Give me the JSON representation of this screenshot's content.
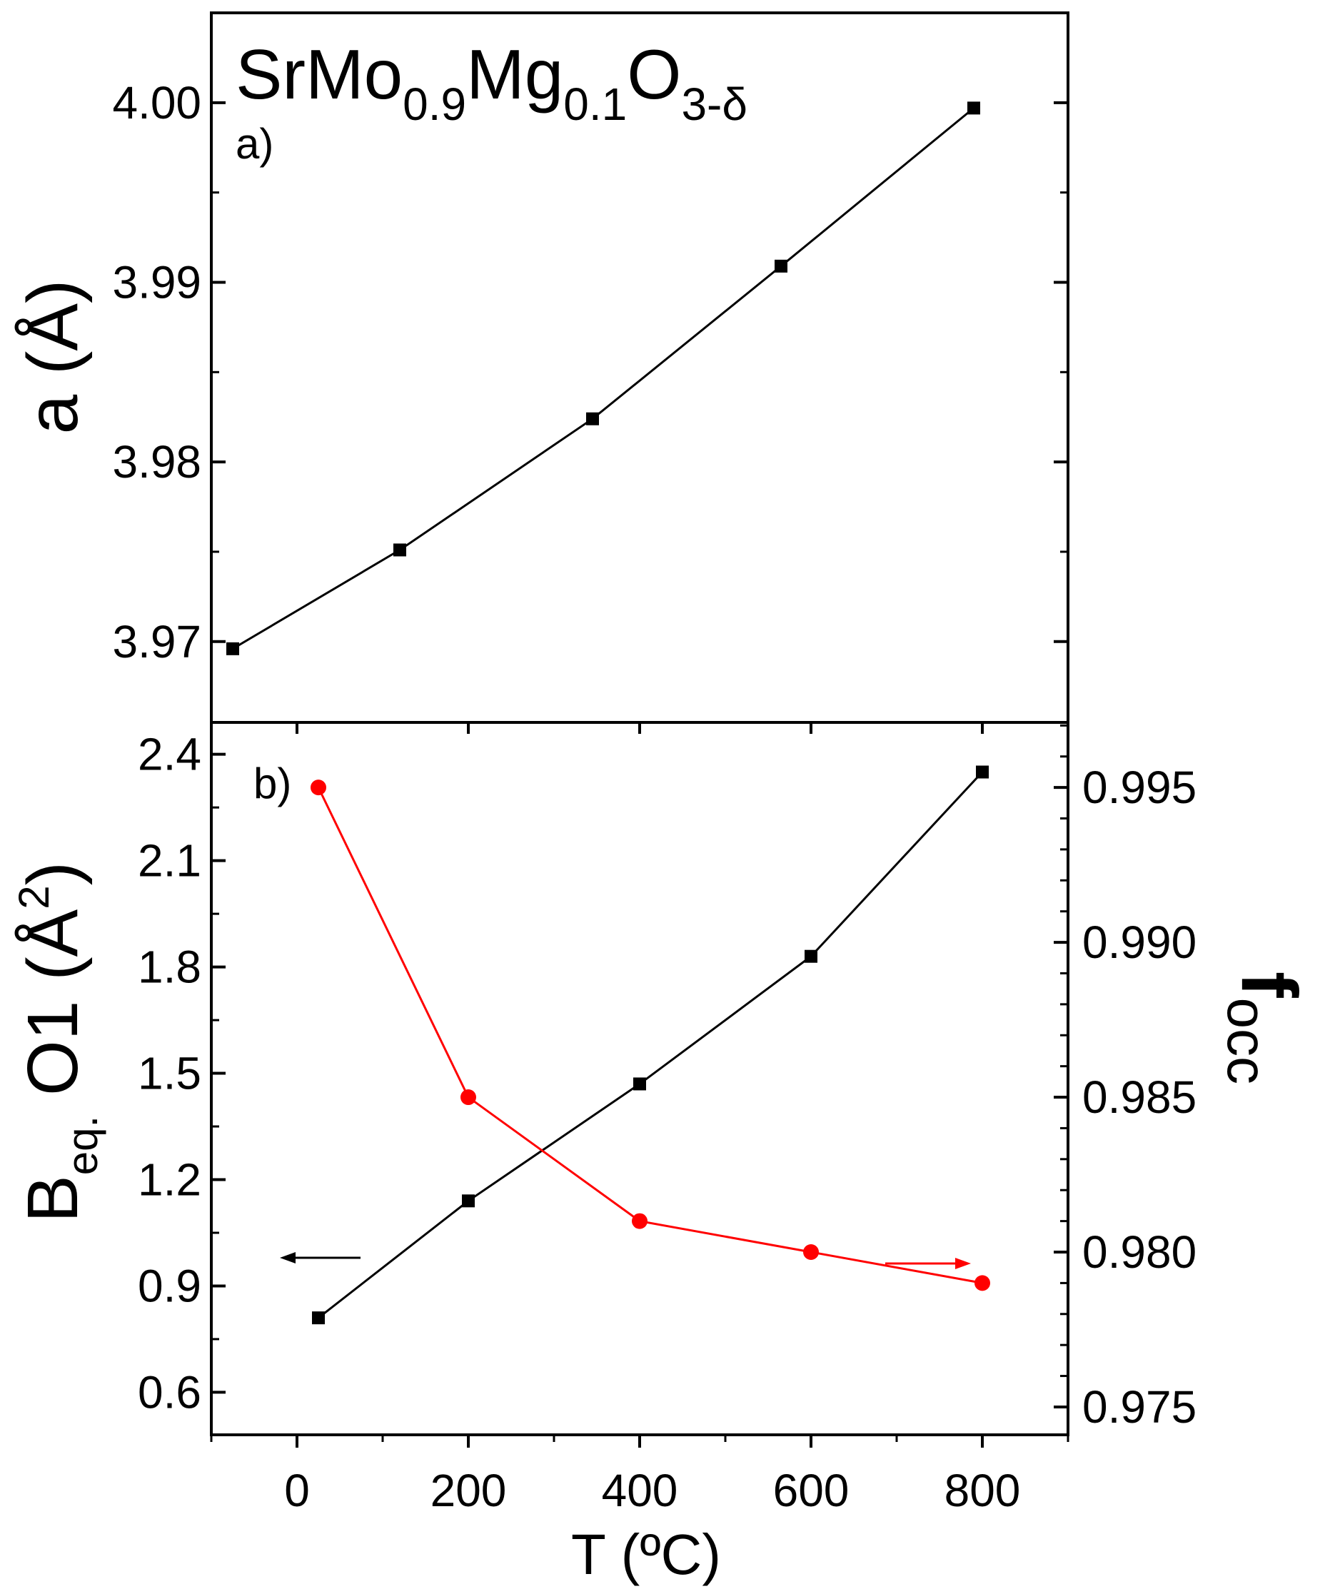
{
  "chart_data": [
    {
      "panel": "a)",
      "type": "line",
      "title": {
        "base": "SrMo",
        "sub1": "0.9",
        "mid": "Mg",
        "sub2": "0.1",
        "end": "O",
        "sub3": "3-δ"
      },
      "ylabel": {
        "main": "a (Å)"
      },
      "xlim": [
        -100,
        900
      ],
      "ylim": [
        3.9655,
        4.005
      ],
      "yticks": [
        "3.97",
        "3.98",
        "3.99",
        "4.00"
      ],
      "grid": false,
      "series": [
        {
          "marker": "square",
          "color": "#000000",
          "points": [
            [
              -75,
              3.9696
            ],
            [
              120,
              3.9751
            ],
            [
              345,
              3.9824
            ],
            [
              565,
              3.9909
            ],
            [
              790,
              3.9997
            ]
          ]
        }
      ]
    },
    {
      "panel": "b)",
      "type": "line",
      "xlabel": "T (ºC)",
      "xlim": [
        -100,
        900
      ],
      "xticks": [
        "0",
        "200",
        "400",
        "600",
        "800"
      ],
      "ylabel_left": {
        "main": "B",
        "sub": "eq.",
        "rest": " O1 (Å",
        "sup": "2",
        "close": ")"
      },
      "ylim_left": [
        0.48,
        2.49
      ],
      "yticks_left": [
        "0.6",
        "0.9",
        "1.2",
        "1.5",
        "1.8",
        "2.1",
        "2.4"
      ],
      "ylabel_right": {
        "main": "f",
        "sub": "occ"
      },
      "ylim_right": [
        0.9741,
        0.9971
      ],
      "yticks_right": [
        "0.975",
        "0.980",
        "0.985",
        "0.990",
        "0.995"
      ],
      "grid": false,
      "series": [
        {
          "axis": "left",
          "marker": "square",
          "color": "#000000",
          "points": [
            [
              25,
              0.81
            ],
            [
              200,
              1.14
            ],
            [
              400,
              1.47
            ],
            [
              600,
              1.83
            ],
            [
              800,
              2.35
            ]
          ]
        },
        {
          "axis": "right",
          "marker": "circle",
          "color": "#ff0000",
          "points": [
            [
              25,
              0.995
            ],
            [
              200,
              0.985
            ],
            [
              400,
              0.981
            ],
            [
              600,
              0.98
            ],
            [
              800,
              0.979
            ]
          ]
        }
      ],
      "annotations": [
        {
          "type": "arrow",
          "direction": "left",
          "color": "#000000"
        },
        {
          "type": "arrow",
          "direction": "right",
          "color": "#ff0000"
        }
      ]
    }
  ]
}
